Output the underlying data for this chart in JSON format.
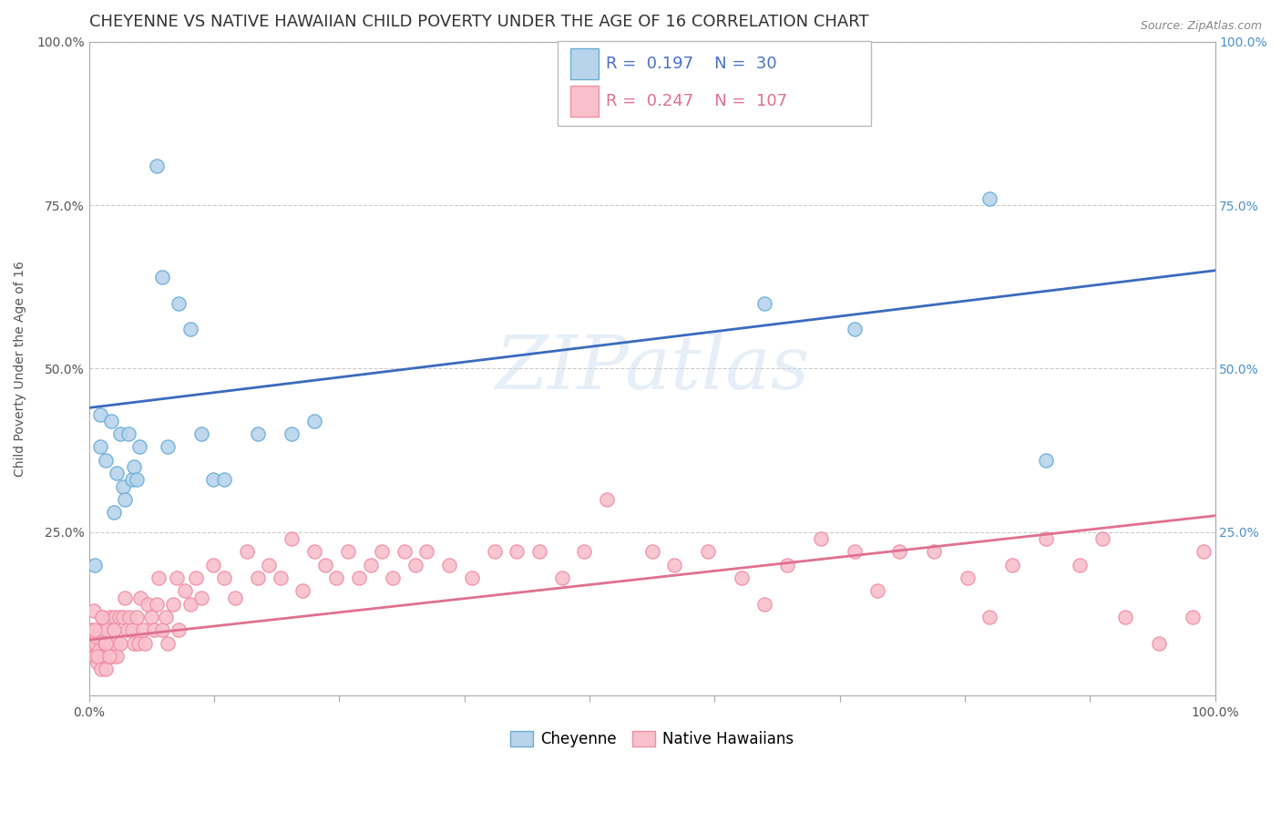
{
  "title": "CHEYENNE VS NATIVE HAWAIIAN CHILD POVERTY UNDER THE AGE OF 16 CORRELATION CHART",
  "source": "Source: ZipAtlas.com",
  "ylabel": "Child Poverty Under the Age of 16",
  "watermark": "ZIPatlas",
  "cheyenne_color": "#6baed6",
  "cheyenne_face": "#b8d4ec",
  "native_color": "#f090a8",
  "native_face": "#f8c0cc",
  "blue_line_color": "#3a6abf",
  "pink_line_color": "#e07090",
  "cheyenne_R": 0.197,
  "cheyenne_N": 30,
  "native_R": 0.247,
  "native_N": 107,
  "cheyenne_x": [
    0.005,
    0.01,
    0.01,
    0.015,
    0.02,
    0.022,
    0.025,
    0.028,
    0.03,
    0.032,
    0.035,
    0.038,
    0.04,
    0.042,
    0.045,
    0.06,
    0.065,
    0.07,
    0.08,
    0.09,
    0.1,
    0.11,
    0.12,
    0.15,
    0.18,
    0.2,
    0.6,
    0.68,
    0.8,
    0.85
  ],
  "cheyenne_y": [
    0.2,
    0.43,
    0.38,
    0.36,
    0.42,
    0.28,
    0.34,
    0.4,
    0.32,
    0.3,
    0.4,
    0.33,
    0.35,
    0.33,
    0.38,
    0.81,
    0.64,
    0.38,
    0.6,
    0.56,
    0.4,
    0.33,
    0.33,
    0.4,
    0.4,
    0.42,
    0.6,
    0.56,
    0.76,
    0.36
  ],
  "native_x": [
    0.002,
    0.003,
    0.004,
    0.005,
    0.006,
    0.007,
    0.008,
    0.009,
    0.01,
    0.011,
    0.012,
    0.013,
    0.014,
    0.015,
    0.016,
    0.017,
    0.018,
    0.019,
    0.02,
    0.021,
    0.022,
    0.023,
    0.024,
    0.025,
    0.027,
    0.028,
    0.03,
    0.032,
    0.034,
    0.036,
    0.038,
    0.04,
    0.042,
    0.044,
    0.046,
    0.048,
    0.05,
    0.052,
    0.055,
    0.058,
    0.06,
    0.062,
    0.065,
    0.068,
    0.07,
    0.075,
    0.078,
    0.08,
    0.085,
    0.09,
    0.095,
    0.1,
    0.11,
    0.12,
    0.13,
    0.14,
    0.15,
    0.16,
    0.17,
    0.18,
    0.19,
    0.2,
    0.21,
    0.22,
    0.23,
    0.24,
    0.25,
    0.26,
    0.27,
    0.28,
    0.29,
    0.3,
    0.32,
    0.34,
    0.36,
    0.38,
    0.4,
    0.42,
    0.44,
    0.46,
    0.5,
    0.52,
    0.55,
    0.58,
    0.6,
    0.62,
    0.65,
    0.68,
    0.7,
    0.72,
    0.75,
    0.78,
    0.8,
    0.82,
    0.85,
    0.88,
    0.9,
    0.92,
    0.95,
    0.98,
    0.99,
    0.005,
    0.008,
    0.012,
    0.015,
    0.018,
    0.022
  ],
  "native_y": [
    0.1,
    0.08,
    0.13,
    0.06,
    0.08,
    0.09,
    0.05,
    0.07,
    0.1,
    0.04,
    0.12,
    0.06,
    0.08,
    0.04,
    0.1,
    0.06,
    0.08,
    0.12,
    0.08,
    0.06,
    0.1,
    0.12,
    0.08,
    0.06,
    0.12,
    0.08,
    0.12,
    0.15,
    0.1,
    0.12,
    0.1,
    0.08,
    0.12,
    0.08,
    0.15,
    0.1,
    0.08,
    0.14,
    0.12,
    0.1,
    0.14,
    0.18,
    0.1,
    0.12,
    0.08,
    0.14,
    0.18,
    0.1,
    0.16,
    0.14,
    0.18,
    0.15,
    0.2,
    0.18,
    0.15,
    0.22,
    0.18,
    0.2,
    0.18,
    0.24,
    0.16,
    0.22,
    0.2,
    0.18,
    0.22,
    0.18,
    0.2,
    0.22,
    0.18,
    0.22,
    0.2,
    0.22,
    0.2,
    0.18,
    0.22,
    0.22,
    0.22,
    0.18,
    0.22,
    0.3,
    0.22,
    0.2,
    0.22,
    0.18,
    0.14,
    0.2,
    0.24,
    0.22,
    0.16,
    0.22,
    0.22,
    0.18,
    0.12,
    0.2,
    0.24,
    0.2,
    0.24,
    0.12,
    0.08,
    0.12,
    0.22,
    0.1,
    0.06,
    0.12,
    0.08,
    0.06,
    0.1
  ],
  "xlim": [
    0.0,
    1.0
  ],
  "ylim": [
    0.0,
    1.0
  ],
  "cheyenne_line_x0": 0.0,
  "cheyenne_line_y0": 0.44,
  "cheyenne_line_x1": 1.0,
  "cheyenne_line_y1": 0.65,
  "native_line_x0": 0.0,
  "native_line_y0": 0.085,
  "native_line_x1": 1.0,
  "native_line_y1": 0.275,
  "grid_color": "#cccccc",
  "bg_color": "#ffffff",
  "title_fontsize": 13,
  "tick_fontsize": 10,
  "source_text": "Source: ZipAtlas.com"
}
